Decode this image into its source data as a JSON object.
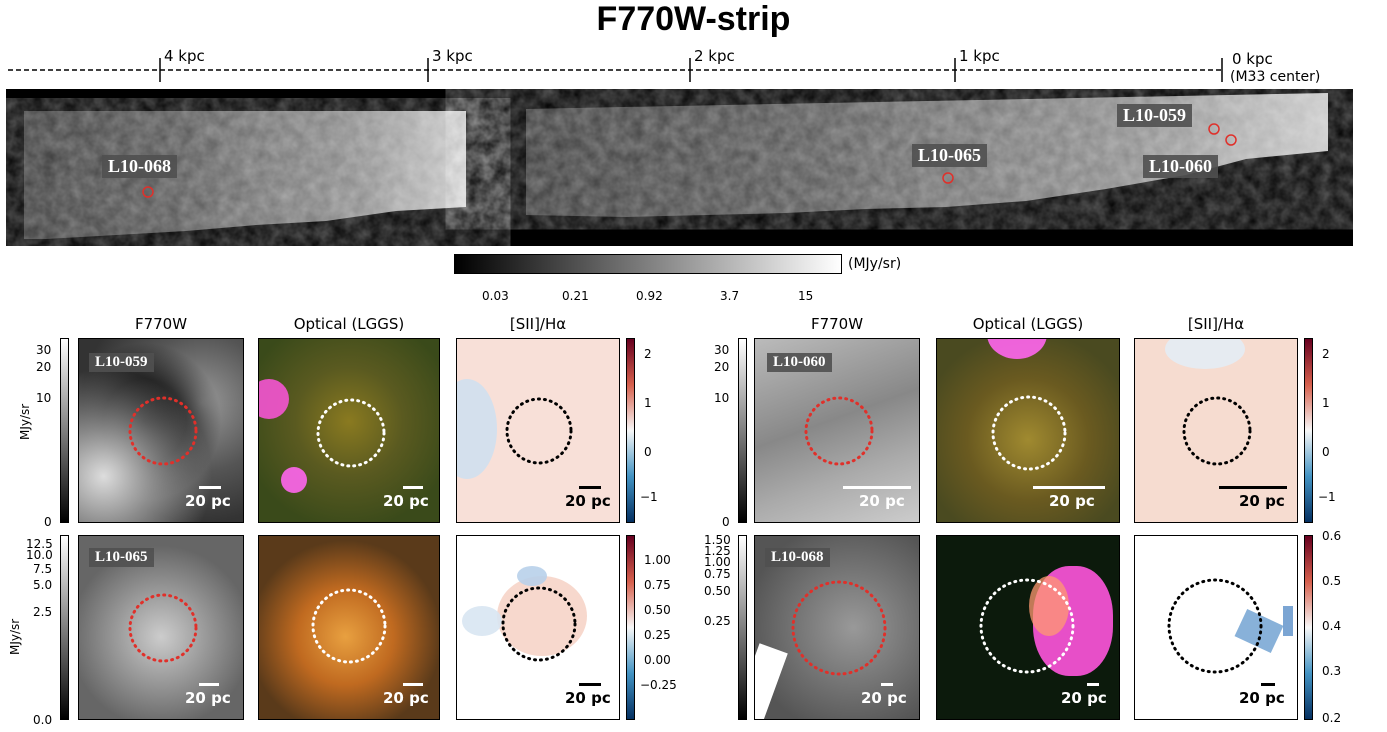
{
  "title": "F770W-strip",
  "distance_axis": {
    "ticks": [
      {
        "label": "4 kpc"
      },
      {
        "label": "3 kpc"
      },
      {
        "label": "2 kpc"
      },
      {
        "label": "1 kpc"
      },
      {
        "label": "0 kpc"
      }
    ],
    "center_note": "(M33 center)"
  },
  "strip_labels": {
    "l10_059": "L10-059",
    "l10_060": "L10-060",
    "l10_065": "L10-065",
    "l10_068": "L10-068"
  },
  "strip_colorbar": {
    "unit": "(MJy/sr)",
    "ticks": [
      "0.03",
      "0.21",
      "0.92",
      "3.7",
      "15"
    ]
  },
  "panel_titles": {
    "f770w": "F770W",
    "optical": "Optical (LGGS)",
    "sii_ha": "[SII]/Hα"
  },
  "scale_bar": "20 pc",
  "unit_label": "MJy/sr",
  "rows": {
    "r059": {
      "name": "L10-059",
      "left_ticks": [
        "30",
        "20",
        "10",
        "0"
      ],
      "right_ticks": [
        "2",
        "1",
        "0",
        "−1"
      ]
    },
    "r060": {
      "name": "L10-060",
      "left_ticks": [
        "30",
        "20",
        "10",
        "0"
      ],
      "right_ticks": [
        "2",
        "1",
        "0",
        "−1"
      ]
    },
    "r065": {
      "name": "L10-065",
      "left_ticks": [
        "12.5",
        "10.0",
        "7.5",
        "5.0",
        "2.5",
        "0.0"
      ],
      "right_ticks": [
        "1.00",
        "0.75",
        "0.50",
        "0.25",
        "0.00",
        "−0.25"
      ]
    },
    "r068": {
      "name": "L10-068",
      "left_ticks": [
        "1.50",
        "1.25",
        "1.00",
        "0.75",
        "0.50",
        "0.25"
      ],
      "right_ticks": [
        "0.6",
        "0.5",
        "0.4",
        "0.3",
        "0.2"
      ]
    }
  },
  "colors": {
    "region_circle_ir": "#e0302a",
    "region_circle_opt": "#ffffff",
    "region_circle_ratio": "#000000",
    "ratio_high": "#b2182b",
    "ratio_low": "#2166ac"
  }
}
